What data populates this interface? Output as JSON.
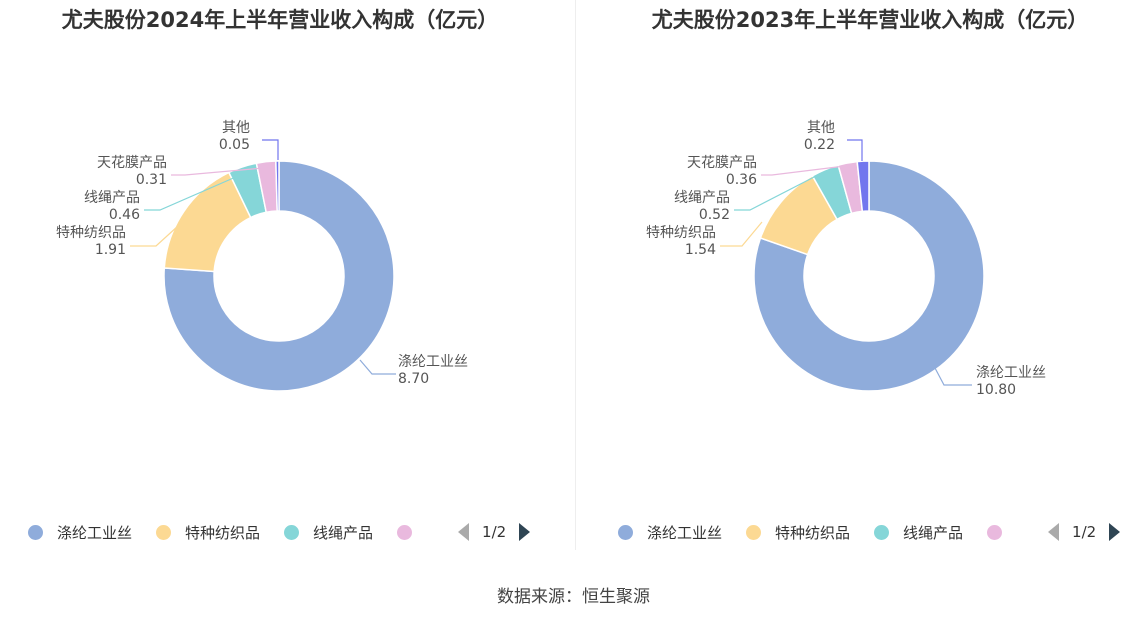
{
  "colors": {
    "涤纶工业丝": "#8facdb",
    "特种纺织品": "#fcd993",
    "线绳产品": "#85d6d8",
    "天花膜产品": "#e9b9de",
    "其他": "#7276ee"
  },
  "chart_data": [
    {
      "type": "pie",
      "title": "尤夫股份2024年上半年营业收入构成（亿元）",
      "donut": true,
      "slices": [
        {
          "name": "涤纶工业丝",
          "value": 8.7,
          "label": "8.70"
        },
        {
          "name": "特种纺织品",
          "value": 1.91,
          "label": "1.91"
        },
        {
          "name": "线绳产品",
          "value": 0.46,
          "label": "0.46"
        },
        {
          "name": "天花膜产品",
          "value": 0.31,
          "label": "0.31"
        },
        {
          "name": "其他",
          "value": 0.05,
          "label": "0.05"
        }
      ],
      "legend": {
        "position": "bottom",
        "visible_items": [
          "涤纶工业丝",
          "特种纺织品",
          "线绳产品",
          ""
        ],
        "page": "1/2"
      }
    },
    {
      "type": "pie",
      "title": "尤夫股份2023年上半年营业收入构成（亿元）",
      "donut": true,
      "slices": [
        {
          "name": "涤纶工业丝",
          "value": 10.8,
          "label": "10.80"
        },
        {
          "name": "特种纺织品",
          "value": 1.54,
          "label": "1.54"
        },
        {
          "name": "线绳产品",
          "value": 0.52,
          "label": "0.52"
        },
        {
          "name": "天花膜产品",
          "value": 0.36,
          "label": "0.36"
        },
        {
          "name": "其他",
          "value": 0.22,
          "label": "0.22"
        }
      ],
      "legend": {
        "position": "bottom",
        "visible_items": [
          "涤纶工业丝",
          "特种纺织品",
          "线绳产品",
          ""
        ],
        "page": "1/2"
      }
    }
  ],
  "footer": {
    "source": "数据来源：恒生聚源"
  }
}
